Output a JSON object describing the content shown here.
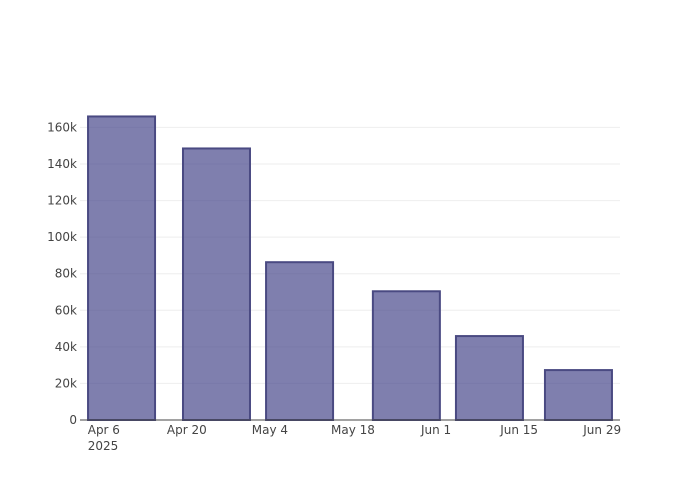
{
  "chart_data": {
    "type": "bar",
    "x": [
      "2025-04-09",
      "2025-04-25",
      "2025-05-09",
      "2025-05-27",
      "2025-06-10",
      "2025-06-25"
    ],
    "values": [
      166000,
      148500,
      86300,
      70400,
      45900,
      27300
    ],
    "color": "rgba(72, 72, 140, 0.7)",
    "line_color": "#4a4a82",
    "xlim": [
      "2025-04-02",
      "2025-07-02"
    ],
    "xticks": [
      {
        "value": "2025-04-06",
        "label": "Apr 6\n2025"
      },
      {
        "value": "2025-04-20",
        "label": "Apr 20"
      },
      {
        "value": "2025-05-04",
        "label": "May 4"
      },
      {
        "value": "2025-05-18",
        "label": "May 18"
      },
      {
        "value": "2025-06-01",
        "label": "Jun 1"
      },
      {
        "value": "2025-06-15",
        "label": "Jun 15"
      },
      {
        "value": "2025-06-29",
        "label": "Jun 29"
      }
    ],
    "ylim": [
      0,
      175000
    ],
    "yticks": [
      0,
      {
        "value": 20000,
        "label": "20k"
      },
      {
        "value": 40000,
        "label": "40k"
      },
      {
        "value": 60000,
        "label": "60k"
      },
      {
        "value": 80000,
        "label": "80k"
      },
      {
        "value": 100000,
        "label": "100k"
      },
      {
        "value": 120000,
        "label": "120k"
      },
      {
        "value": 140000,
        "label": "140k"
      },
      {
        "value": 160000,
        "label": "160k"
      }
    ],
    "grid": true
  }
}
